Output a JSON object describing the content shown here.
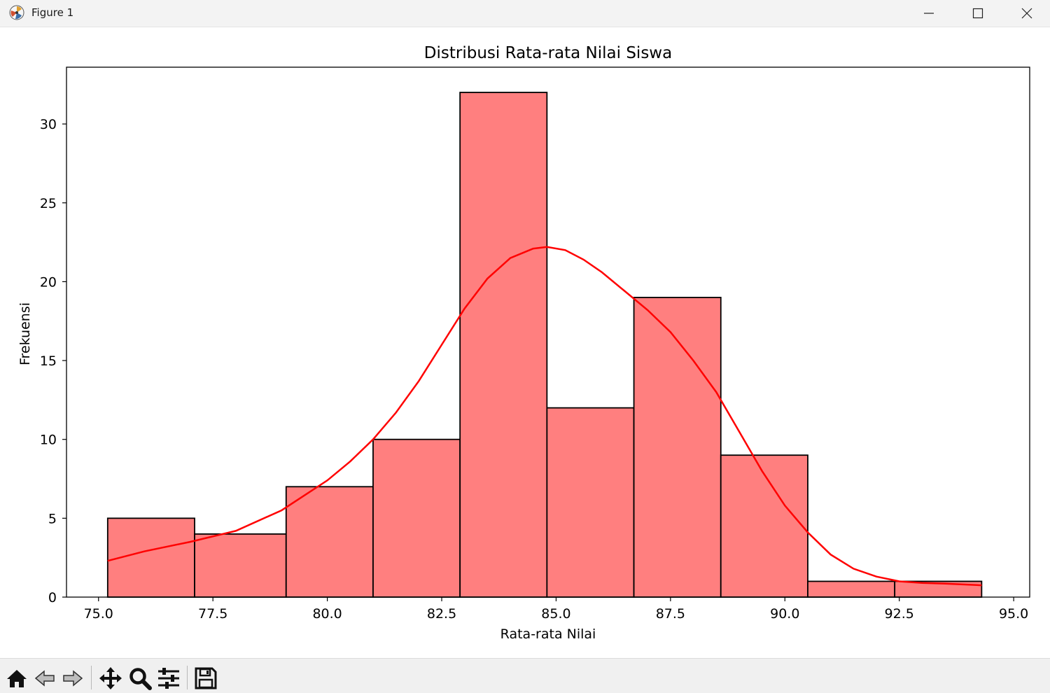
{
  "window": {
    "title": "Figure 1"
  },
  "toolbar": {
    "tools": [
      "home-icon",
      "back-arrow-icon",
      "forward-arrow-icon",
      "pan-icon",
      "zoom-icon",
      "configure-subplots-icon",
      "save-icon"
    ]
  },
  "colors": {
    "bar_fill": "#ff7f7f",
    "bar_edge": "#000000",
    "kde_line": "#ff0000"
  },
  "chart_data": {
    "type": "bar",
    "title": "Distribusi Rata-rata Nilai Siswa",
    "xlabel": "Rata-rata Nilai",
    "ylabel": "Frekuensi",
    "xlim": [
      74.3,
      95.35
    ],
    "ylim": [
      0,
      33.6
    ],
    "xticks": [
      75.0,
      77.5,
      80.0,
      82.5,
      85.0,
      87.5,
      90.0,
      92.5,
      95.0
    ],
    "xtick_labels": [
      "75.0",
      "77.5",
      "80.0",
      "82.5",
      "85.0",
      "87.5",
      "90.0",
      "92.5",
      "95.0"
    ],
    "yticks": [
      0,
      5,
      10,
      15,
      20,
      25,
      30
    ],
    "ytick_labels": [
      "0",
      "5",
      "10",
      "15",
      "20",
      "25",
      "30"
    ],
    "bins": [
      {
        "start": 75.2,
        "end": 77.1,
        "count": 5
      },
      {
        "start": 77.1,
        "end": 79.1,
        "count": 4
      },
      {
        "start": 79.1,
        "end": 81.0,
        "count": 7
      },
      {
        "start": 81.0,
        "end": 82.9,
        "count": 10
      },
      {
        "start": 82.9,
        "end": 84.8,
        "count": 32
      },
      {
        "start": 84.8,
        "end": 86.7,
        "count": 12
      },
      {
        "start": 86.7,
        "end": 88.6,
        "count": 19
      },
      {
        "start": 88.6,
        "end": 90.5,
        "count": 9
      },
      {
        "start": 90.5,
        "end": 92.4,
        "count": 1
      },
      {
        "start": 92.4,
        "end": 94.3,
        "count": 1
      }
    ],
    "kde": {
      "x": [
        75.2,
        76.0,
        77.0,
        78.0,
        79.0,
        80.0,
        80.5,
        81.0,
        81.5,
        82.0,
        82.5,
        83.0,
        83.5,
        84.0,
        84.5,
        84.8,
        85.2,
        85.6,
        86.0,
        86.5,
        87.0,
        87.5,
        88.0,
        88.5,
        89.0,
        89.5,
        90.0,
        90.5,
        91.0,
        91.5,
        92.0,
        92.5,
        93.0,
        93.5,
        94.3
      ],
      "y": [
        2.3,
        2.9,
        3.5,
        4.2,
        5.5,
        7.4,
        8.6,
        10.0,
        11.7,
        13.7,
        16.0,
        18.3,
        20.2,
        21.5,
        22.1,
        22.2,
        22.0,
        21.4,
        20.6,
        19.4,
        18.2,
        16.8,
        15.0,
        13.0,
        10.5,
        8.0,
        5.8,
        4.1,
        2.7,
        1.8,
        1.3,
        1.0,
        0.9,
        0.85,
        0.75
      ]
    }
  }
}
